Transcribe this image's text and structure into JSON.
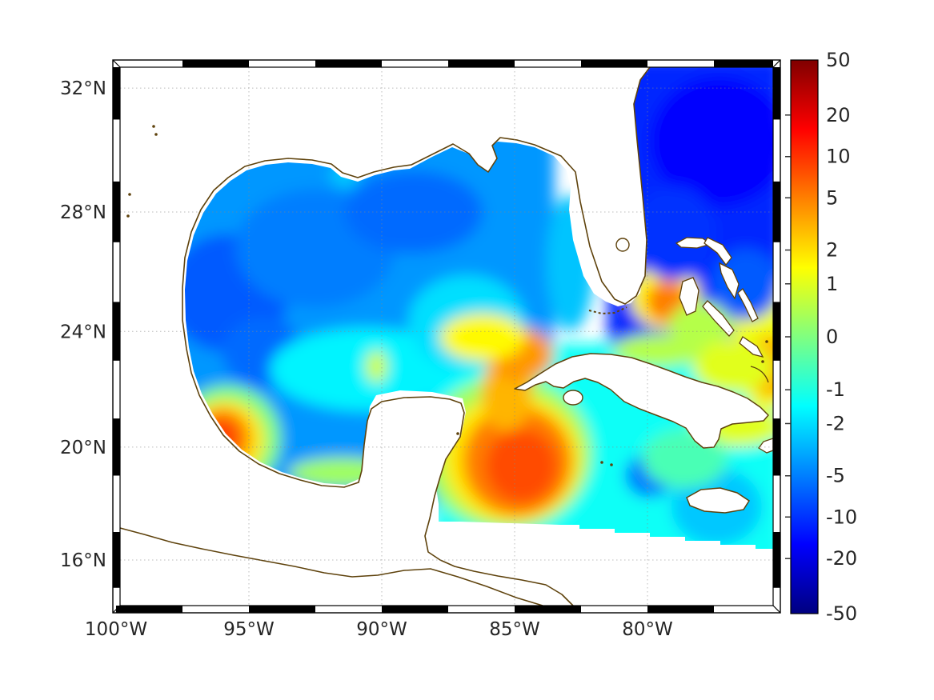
{
  "axes": {
    "x_tick_labels": [
      "100°W",
      "95°W",
      "90°W",
      "85°W",
      "80°W"
    ],
    "y_tick_labels": [
      "32°N",
      "28°N",
      "24°N",
      "20°N",
      "16°N"
    ]
  },
  "colorbar": {
    "tick_labels": [
      "50",
      "20",
      "10",
      "5",
      "2",
      "1",
      "0",
      "-1",
      "-2",
      "-5",
      "-10",
      "-20",
      "-50"
    ],
    "tick_values": [
      50,
      20,
      10,
      5,
      2,
      1,
      0,
      -1,
      -2,
      -5,
      -10,
      -20,
      -50
    ],
    "scale": "asinh",
    "colormap": "jet",
    "range": [
      -50,
      50
    ]
  },
  "colors": {
    "background": "#ffffff",
    "coastline": "#5e420c",
    "grid": "#888888",
    "frame": "#000000",
    "label": "#262626"
  },
  "chart_data": {
    "type": "heatmap",
    "projection": "mercator",
    "lon_extent_deg_w": [
      100,
      75.1
    ],
    "lat_extent_deg_n": [
      14.4,
      32.7
    ],
    "x_tick_lons_w": [
      100,
      95,
      90,
      85,
      80
    ],
    "y_tick_lats_n": [
      32,
      28,
      24,
      20,
      16
    ],
    "value_scale": "asinh",
    "value_range": [
      -50,
      50
    ],
    "base_regions": [
      {
        "name": "gulf-base",
        "lon_w": [
          100,
          83.5
        ],
        "lat_n": [
          17.8,
          31.5
        ],
        "value": -4
      },
      {
        "name": "atlantic-base",
        "lon_w": [
          81.5,
          74.9
        ],
        "lat_n": [
          23.0,
          33.0
        ],
        "value": -11
      },
      {
        "name": "caribbean-base",
        "lon_w": [
          88.0,
          74.9
        ],
        "lat_n": [
          14.8,
          23.6
        ],
        "value": -1.3
      }
    ],
    "anomaly_blobs": [
      {
        "name": "gulf-west-blue",
        "lon_w": 95.8,
        "lat_n": 25.3,
        "rx": 2.3,
        "ry": 2.0,
        "value": -7
      },
      {
        "name": "gulf-mid-blue",
        "lon_w": 92.5,
        "lat_n": 26.8,
        "rx": 3.0,
        "ry": 2.0,
        "value": -5
      },
      {
        "name": "gulf-north-blue",
        "lon_w": 88.8,
        "lat_n": 28.0,
        "rx": 2.6,
        "ry": 1.4,
        "value": -6
      },
      {
        "name": "gulf-sw-blue",
        "lon_w": 94.5,
        "lat_n": 23.3,
        "rx": 1.5,
        "ry": 1.2,
        "value": -6
      },
      {
        "name": "atchafalaya-cyan",
        "lon_w": 91.4,
        "lat_n": 29.2,
        "rx": 0.55,
        "ry": 0.4,
        "value": -2.5
      },
      {
        "name": "gulf-south-cyan",
        "lon_w": 90.6,
        "lat_n": 22.7,
        "rx": 3.6,
        "ry": 1.4,
        "value": -1.6
      },
      {
        "name": "loop-current-cyan",
        "lon_w": 86.8,
        "lat_n": 24.3,
        "rx": 2.2,
        "ry": 1.6,
        "value": -2
      },
      {
        "name": "wfl-shelf-cyan",
        "lon_w": 82.9,
        "lat_n": 26.3,
        "rx": 0.9,
        "ry": 2.3,
        "value": -2.6
      },
      {
        "name": "campeche-shelf-green",
        "lon_w": 91.5,
        "lat_n": 19.1,
        "rx": 2.0,
        "ry": 0.5,
        "value": 0.3
      },
      {
        "name": "mid-gulf-yellow-spike",
        "lon_w": 90.2,
        "lat_n": 22.8,
        "rx": 0.4,
        "ry": 0.55,
        "value": 0.8
      },
      {
        "name": "campeche-green-ring",
        "lon_w": 95.8,
        "lat_n": 20.3,
        "rx": 2.0,
        "ry": 1.8,
        "value": 0
      },
      {
        "name": "campeche-yellow",
        "lon_w": 95.9,
        "lat_n": 20.25,
        "rx": 1.5,
        "ry": 1.35,
        "value": 1.8
      },
      {
        "name": "campeche-orange",
        "lon_w": 96.0,
        "lat_n": 20.3,
        "rx": 1.05,
        "ry": 1.0,
        "value": 5
      },
      {
        "name": "campeche-core",
        "lon_w": 96.05,
        "lat_n": 20.35,
        "rx": 0.62,
        "ry": 0.6,
        "value": 9
      },
      {
        "name": "carib-green-ring",
        "lon_w": 85.3,
        "lat_n": 19.8,
        "rx": 3.2,
        "ry": 2.6,
        "value": 0.3
      },
      {
        "name": "carib-yellow",
        "lon_w": 85.1,
        "lat_n": 19.6,
        "rx": 2.6,
        "ry": 2.2,
        "value": 1.8
      },
      {
        "name": "carib-orange",
        "lon_w": 84.9,
        "lat_n": 19.5,
        "rx": 2.05,
        "ry": 1.85,
        "value": 5
      },
      {
        "name": "carib-core",
        "lon_w": 84.75,
        "lat_n": 19.35,
        "rx": 1.35,
        "ry": 1.25,
        "value": 8
      },
      {
        "name": "yucatan-channel-tongue",
        "lon_w": 85.3,
        "lat_n": 21.9,
        "rx": 0.95,
        "ry": 1.3,
        "value": 3
      },
      {
        "name": "nw-cuba-orange",
        "lon_w": 84.8,
        "lat_n": 23.2,
        "rx": 1.25,
        "ry": 0.9,
        "value": 4
      },
      {
        "name": "nw-cuba-yellow-cap",
        "lon_w": 86.2,
        "lat_n": 23.8,
        "rx": 1.6,
        "ry": 0.8,
        "value": 1.5
      },
      {
        "name": "straits-yellow",
        "lon_w": 79.35,
        "lat_n": 25.2,
        "rx": 1.3,
        "ry": 1.1,
        "value": 1.5
      },
      {
        "name": "straits-orange",
        "lon_w": 79.25,
        "lat_n": 25.0,
        "rx": 0.8,
        "ry": 0.72,
        "value": 5
      },
      {
        "name": "bank-greenyellow",
        "lon_w": 78.0,
        "lat_n": 24.2,
        "rx": 1.2,
        "ry": 0.8,
        "value": 0.5
      },
      {
        "name": "edge-yellow-north",
        "lon_w": 75.5,
        "lat_n": 23.6,
        "rx": 1.3,
        "ry": 2.3,
        "value": 1.2
      },
      {
        "name": "edge-orange",
        "lon_w": 75.35,
        "lat_n": 22.8,
        "rx": 0.95,
        "ry": 1.05,
        "value": 3
      },
      {
        "name": "bahamas-se-yellow",
        "lon_w": 76.8,
        "lat_n": 22.8,
        "rx": 1.5,
        "ry": 0.9,
        "value": 1
      },
      {
        "name": "se-cuba-yellow",
        "lon_w": 76.6,
        "lat_n": 20.7,
        "rx": 1.7,
        "ry": 0.65,
        "value": 1
      },
      {
        "name": "cuba-north-green",
        "lon_w": 79.6,
        "lat_n": 23.35,
        "rx": 1.7,
        "ry": 0.55,
        "value": 0.5
      },
      {
        "name": "se-cuba-blue",
        "lon_w": 79.9,
        "lat_n": 19.0,
        "rx": 0.95,
        "ry": 0.75,
        "value": -5
      },
      {
        "name": "jamaica-cyan",
        "lon_w": 77.4,
        "lat_n": 17.9,
        "rx": 1.7,
        "ry": 1.3,
        "value": -2.5
      },
      {
        "name": "carib-green-patch",
        "lon_w": 78.6,
        "lat_n": 19.6,
        "rx": 1.6,
        "ry": 1.0,
        "value": -0.5
      },
      {
        "name": "atlantic-deep",
        "lon_w": 77.3,
        "lat_n": 30.3,
        "rx": 2.6,
        "ry": 2.2,
        "value": -15
      },
      {
        "name": "atlantic-deep-south",
        "lon_w": 79.0,
        "lat_n": 27.3,
        "rx": 1.6,
        "ry": 1.6,
        "value": -10
      },
      {
        "name": "ne-bahamas-blue",
        "lon_w": 76.3,
        "lat_n": 25.6,
        "rx": 1.3,
        "ry": 1.2,
        "value": -7
      }
    ],
    "inland_water": [
      {
        "name": "mobile-bay-patch",
        "lon_w": 88.1,
        "lat_n": 30.55,
        "w_deg": 0.45,
        "h_deg": 0.35,
        "value": -7
      }
    ]
  }
}
